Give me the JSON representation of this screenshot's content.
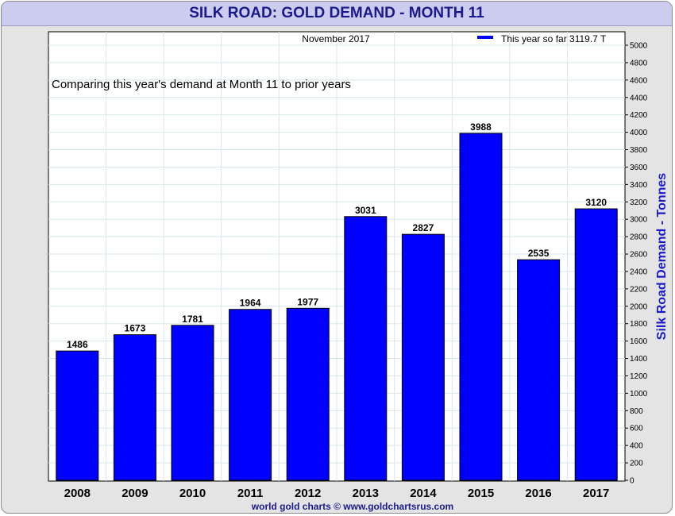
{
  "header": {
    "title": "SILK ROAD: GOLD DEMAND - MONTH 11"
  },
  "annotations": {
    "period": "November 2017",
    "comparison": "Comparing this year's demand at Month 11 to prior years",
    "legend": "This year so far 3119.7 T",
    "credit": "world gold charts © www.goldchartsrus.com"
  },
  "colors": {
    "bar": "#0000ff",
    "title": "#1a1a8c",
    "ylabel": "#1a1acc",
    "grid": "#d8e8ec"
  },
  "chart_data": {
    "type": "bar",
    "title": "SILK ROAD: GOLD DEMAND - MONTH 11",
    "categories": [
      "2008",
      "2009",
      "2010",
      "2011",
      "2012",
      "2013",
      "2014",
      "2015",
      "2016",
      "2017"
    ],
    "values": [
      1486,
      1673,
      1781,
      1964,
      1977,
      3031,
      2827,
      3988,
      2535,
      3120
    ],
    "value_labels": [
      "1486",
      "1673",
      "1781",
      "1964",
      "1977",
      "3031",
      "2827",
      "3988",
      "2535",
      "3120"
    ],
    "series": [
      {
        "name": "This year so far 3119.7 T",
        "values": [
          1486,
          1673,
          1781,
          1964,
          1977,
          3031,
          2827,
          3988,
          2535,
          3120
        ]
      }
    ],
    "xlabel": "",
    "ylabel": "Silk Road Demand - Tonnes",
    "ylim": [
      0,
      5000
    ],
    "yticks": [
      "0",
      "200",
      "400",
      "600",
      "800",
      "1000",
      "1200",
      "1400",
      "1600",
      "1800",
      "2000",
      "2200",
      "2400",
      "2600",
      "2800",
      "3000",
      "3200",
      "3400",
      "3600",
      "3800",
      "4000",
      "4200",
      "4400",
      "4600",
      "4800",
      "5000"
    ],
    "y_axis_side": "right",
    "grid": true,
    "legend_position": "top-right"
  }
}
